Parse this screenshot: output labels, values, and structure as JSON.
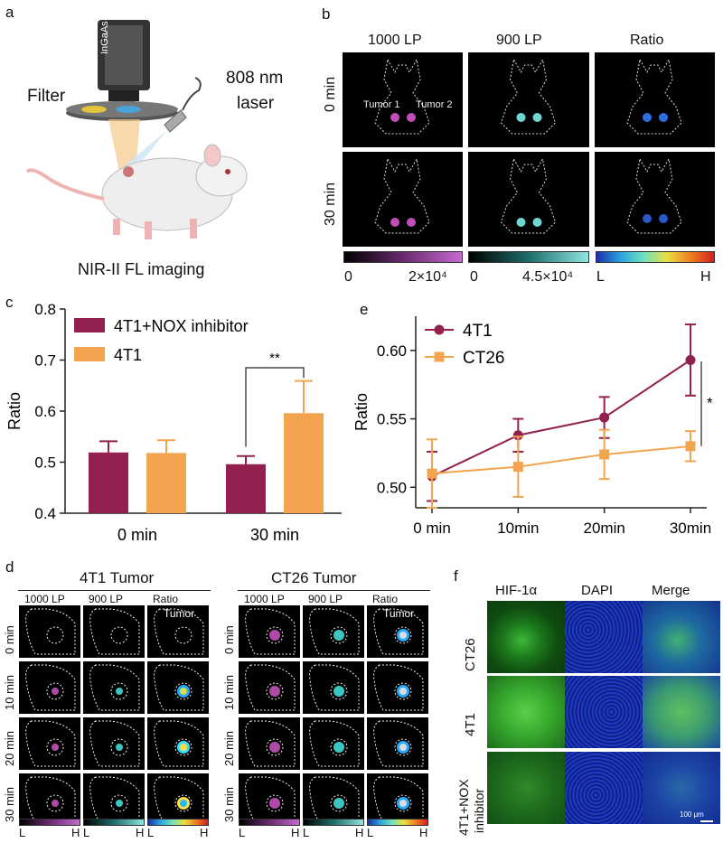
{
  "panels": {
    "a": "a",
    "b": "b",
    "c": "c",
    "d": "d",
    "e": "e",
    "f": "f"
  },
  "panel_a": {
    "camera": "InGaAs",
    "filter": "Filter",
    "laser_line1": "808 nm",
    "laser_line2": "laser",
    "caption": "NIR-II FL imaging"
  },
  "panel_b": {
    "col_headers": [
      "1000 LP",
      "900 LP",
      "Ratio"
    ],
    "row_labels": [
      "0 min",
      "30 min"
    ],
    "tumor1": "Tumor 1",
    "tumor2": "Tumor 2",
    "cbar_1000": {
      "min": "0",
      "max": "2×10⁴"
    },
    "cbar_900": {
      "min": "0",
      "max": "4.5×10⁴"
    },
    "cbar_ratio": {
      "min": "L",
      "max": "H"
    }
  },
  "panel_d": {
    "group_titles": [
      "4T1 Tumor",
      "CT26 Tumor"
    ],
    "col_headers": [
      "1000 LP",
      "900 LP",
      "Ratio"
    ],
    "row_labels": [
      "0 min",
      "10 min",
      "20 min",
      "30 min"
    ],
    "tumor_label": "Tumor",
    "cbar_L": "L",
    "cbar_H": "H"
  },
  "panel_f": {
    "col_headers": [
      "HIF-1α",
      "DAPI",
      "Merge"
    ],
    "row_labels": [
      "CT26",
      "4T1",
      "4T1+NOX\ninhibitor"
    ],
    "row_label_line1": "4T1+NOX",
    "row_label_line2": "inhibitor",
    "scale_bar": "100 μm"
  },
  "colors": {
    "maroon": "#93204f",
    "orange": "#f3a44f"
  },
  "chart_data": [
    {
      "panel": "c",
      "type": "bar",
      "categories": [
        "0 min",
        "30 min"
      ],
      "series": [
        {
          "name": "4T1+NOX inhibitor",
          "color": "#93204f",
          "values": [
            0.519,
            0.496
          ],
          "errors": [
            0.022,
            0.016
          ]
        },
        {
          "name": "4T1",
          "color": "#f3a44f",
          "values": [
            0.518,
            0.596
          ],
          "errors": [
            0.025,
            0.063
          ]
        }
      ],
      "ylabel": "Ratio",
      "ylim": [
        0.4,
        0.8
      ],
      "yticks": [
        "0.4",
        "0.5",
        "0.6",
        "0.7",
        "0.8"
      ],
      "significance": "**",
      "legend": "top-left"
    },
    {
      "panel": "e",
      "type": "line",
      "categories": [
        "0 min",
        "10min",
        "20min",
        "30min"
      ],
      "series": [
        {
          "name": "4T1",
          "color": "#93204f",
          "marker": "circle",
          "values": [
            0.508,
            0.538,
            0.551,
            0.593
          ],
          "errors": [
            0.018,
            0.012,
            0.015,
            0.026
          ]
        },
        {
          "name": "CT26",
          "color": "#f3a44f",
          "marker": "square",
          "values": [
            0.51,
            0.515,
            0.524,
            0.53
          ],
          "errors": [
            0.025,
            0.022,
            0.018,
            0.011
          ]
        }
      ],
      "ylabel": "Ratio",
      "ylim": [
        0.485,
        0.625
      ],
      "yticks": [
        "0.50",
        "0.55",
        "0.60"
      ],
      "significance": "*",
      "legend": "top-left"
    }
  ]
}
